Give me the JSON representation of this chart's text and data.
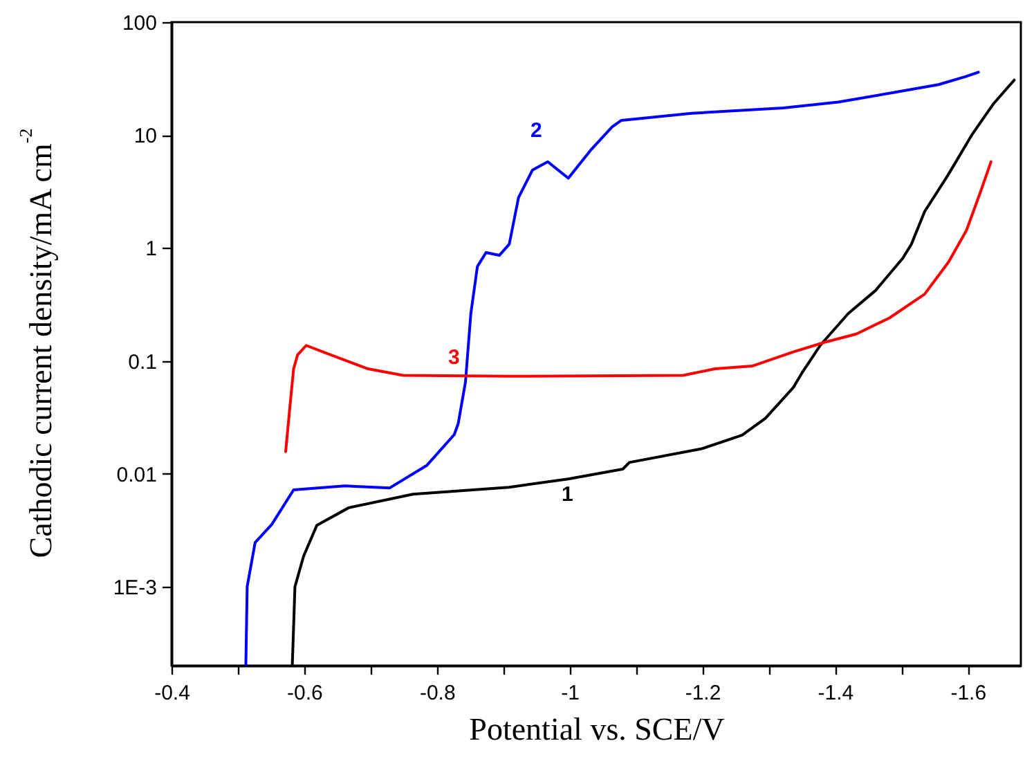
{
  "chart_data": {
    "type": "line",
    "xlabel": "Potential vs. SCE/V",
    "ylabel": "Cathodic current density/mA cm$^{-2}$",
    "log": "y",
    "grid": false,
    "line_style": "solid",
    "marker": "none",
    "xlim": [
      -0.4,
      -1.68
    ],
    "ylim": [
      0.0002,
      100
    ],
    "xticks": [
      -0.4,
      {
        "value": -0.5,
        "label": null
      },
      -0.6,
      {
        "value": -0.7,
        "label": null
      },
      -0.8,
      {
        "value": -0.9,
        "label": null
      },
      -1.0,
      {
        "value": -1.1,
        "label": null
      },
      -1.2,
      {
        "value": -1.3,
        "label": null
      },
      -1.4,
      {
        "value": -1.5,
        "label": null
      },
      -1.6
    ],
    "yticks": [
      {
        "value": 0.001,
        "label": "1E-3"
      },
      0.01,
      0.1,
      1,
      10,
      100
    ],
    "series": [
      {
        "name": "1",
        "color": "#000000",
        "x": [
          -0.582,
          -0.586,
          -0.599,
          -0.619,
          -0.667,
          -0.764,
          -0.909,
          -0.998,
          -1.08,
          -1.09,
          -1.198,
          -1.26,
          -1.295,
          -1.337,
          -1.35,
          -1.378,
          -1.42,
          -1.461,
          -1.502,
          -1.515,
          -1.535,
          -1.57,
          -1.606,
          -1.639,
          -1.67
        ],
        "values": [
          0.0002,
          0.001,
          0.00186,
          0.0035,
          0.005,
          0.0066,
          0.0076,
          0.009,
          0.011,
          0.0126,
          0.0166,
          0.022,
          0.031,
          0.058,
          0.078,
          0.138,
          0.263,
          0.42,
          0.81,
          1.08,
          2.1,
          4.4,
          10,
          19,
          30.7
        ]
      },
      {
        "name": "2",
        "color": "#0000ff",
        "x": [
          -0.512,
          -0.514,
          -0.526,
          -0.551,
          -0.584,
          -0.661,
          -0.729,
          -0.785,
          -0.826,
          -0.832,
          -0.843,
          -0.851,
          -0.861,
          -0.874,
          -0.894,
          -0.909,
          -0.923,
          -0.944,
          -0.967,
          -0.998,
          -1.033,
          -1.064,
          -1.078,
          -1.184,
          -1.322,
          -1.405,
          -1.488,
          -1.556,
          -1.597,
          -1.616
        ],
        "values": [
          0.0002,
          0.001,
          0.00246,
          0.00355,
          0.0072,
          0.0078,
          0.0075,
          0.0119,
          0.0222,
          0.0277,
          0.065,
          0.26,
          0.686,
          0.91,
          0.86,
          1.08,
          2.8,
          4.9,
          5.8,
          4.15,
          7.5,
          11.8,
          13.5,
          15.6,
          17.4,
          19.6,
          23.8,
          28,
          33,
          36
        ]
      },
      {
        "name": "3",
        "color": "#ff0000",
        "x": [
          -0.572,
          -0.578,
          -0.584,
          -0.59,
          -0.603,
          -0.64,
          -0.696,
          -0.749,
          -0.909,
          -1.171,
          -1.219,
          -1.275,
          -1.337,
          -1.384,
          -1.432,
          -1.482,
          -1.535,
          -1.571,
          -1.598,
          -1.618,
          -1.635
        ],
        "values": [
          0.0157,
          0.037,
          0.085,
          0.113,
          0.137,
          0.113,
          0.085,
          0.0745,
          0.073,
          0.0745,
          0.085,
          0.09,
          0.12,
          0.146,
          0.173,
          0.24,
          0.39,
          0.75,
          1.43,
          3.0,
          5.8
        ]
      }
    ]
  }
}
